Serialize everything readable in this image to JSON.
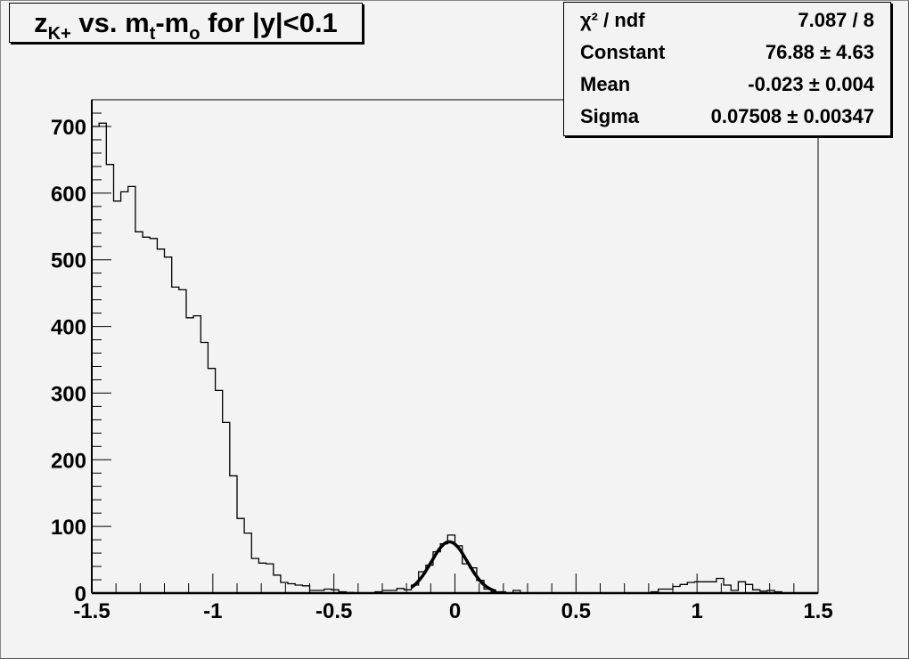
{
  "title": {
    "base": "z",
    "sub1": "K+",
    "mid": " vs. m",
    "sub2": "t",
    "mid2": "-m",
    "sub3": "o",
    "tail": " for |y|<0.1"
  },
  "stats": [
    {
      "label": "χ² / ndf",
      "value": "7.087 / 8"
    },
    {
      "label": "Constant",
      "value": "76.88 ± 4.63"
    },
    {
      "label": "Mean",
      "value": "-0.023 ± 0.004"
    },
    {
      "label": "Sigma",
      "value": "0.07508 ± 0.00347"
    }
  ],
  "chart_data": {
    "type": "histogram",
    "title": "z_K+ vs. m_t-m_o for |y|<0.1",
    "xlim": [
      -1.5,
      1.5
    ],
    "ylim": [
      0,
      740
    ],
    "bin_width": 0.03,
    "x_ticks": [
      "-1.5",
      "-1",
      "-0.5",
      "0",
      "0.5",
      "1",
      "1.5"
    ],
    "x_tick_values": [
      -1.5,
      -1,
      -0.5,
      0,
      0.5,
      1,
      1.5
    ],
    "y_ticks": [
      "0",
      "100",
      "200",
      "300",
      "400",
      "500",
      "600",
      "700"
    ],
    "y_tick_values": [
      0,
      100,
      200,
      300,
      400,
      500,
      600,
      700
    ],
    "grid": false,
    "counts": [
      700,
      705,
      643,
      588,
      602,
      610,
      542,
      534,
      532,
      516,
      504,
      459,
      455,
      413,
      416,
      376,
      337,
      304,
      256,
      176,
      112,
      90,
      52,
      45,
      44,
      27,
      16,
      14,
      12,
      11,
      4,
      4,
      6,
      5,
      2,
      1,
      0,
      0,
      0,
      2,
      4,
      4,
      7,
      5,
      12,
      32,
      42,
      62,
      74,
      87,
      71,
      44,
      38,
      19,
      6,
      2,
      2,
      0,
      4,
      0,
      0,
      0,
      0,
      0,
      0,
      0,
      0,
      0,
      0,
      0,
      0,
      0,
      0,
      0,
      0,
      0,
      0,
      2,
      6,
      6,
      10,
      13,
      16,
      17,
      17,
      17,
      22,
      12,
      4,
      17,
      13,
      5,
      3,
      4,
      2,
      0,
      0,
      0,
      0,
      0
    ],
    "fit": {
      "function": "gaus",
      "constant": 76.88,
      "mean": -0.023,
      "sigma": 0.07508,
      "range": [
        -0.18,
        0.17
      ]
    },
    "colors": {
      "background": "#f3f3f3",
      "line": "#000000"
    }
  }
}
